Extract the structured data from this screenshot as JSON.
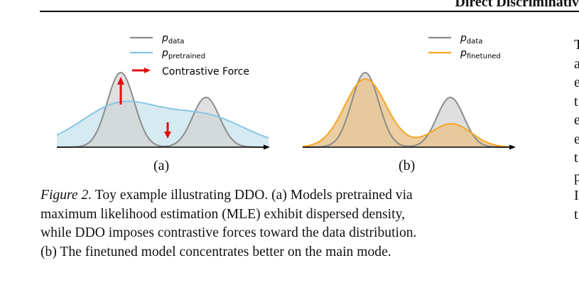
{
  "header": {
    "running_title": "Direct Discriminativ"
  },
  "panel_a": {
    "legend": {
      "data_label": "p",
      "data_sub": "data",
      "pretrained_label": "p",
      "pretrained_sub": "pretrained",
      "force_label": "Contrastive Force"
    },
    "label": "(a)"
  },
  "panel_b": {
    "legend": {
      "data_label": "p",
      "data_sub": "data",
      "finetuned_label": "p",
      "finetuned_sub": "finetuned"
    },
    "label": "(b)"
  },
  "colors": {
    "data": "#8c8c8c",
    "data_fill": "#d3d3d3",
    "pretrained": "#87c6e6",
    "pretrained_fill": "#cfe6f0",
    "finetuned": "#f5a623",
    "finetuned_fill": "#e8c590",
    "force": "#dd1111"
  },
  "caption": {
    "fig_label": "Figure 2.",
    "line1": "  Toy example illustrating DDO. (a) Models pretrained via",
    "line2": "maximum likelihood estimation (MLE) exhibit dispersed density,",
    "line3": "while DDO imposes contrastive forces toward the data distribution.",
    "line4": "(b) The finetuned model concentrates better on the main mode."
  },
  "right_column": {
    "letters": [
      "T",
      "a",
      "e",
      "t",
      "e",
      "e",
      "t",
      "p",
      "I",
      "t"
    ]
  }
}
